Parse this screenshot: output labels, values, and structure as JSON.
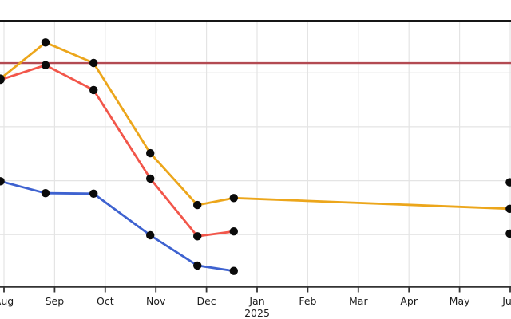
{
  "page": {
    "background": "#ffffff"
  },
  "chart_data": {
    "type": "line",
    "title": "",
    "legend": "none",
    "grid": true,
    "x_axis": {
      "tick_labels": [
        "Aug",
        "Sep",
        "Oct",
        "Nov",
        "Dec",
        "Jan",
        "Feb",
        "Mar",
        "Apr",
        "May",
        "Jun"
      ],
      "year_label": "2025",
      "year_label_tick_index": 5,
      "note": "first and last tick labels clipped at image edges"
    },
    "y_axis": {
      "tick_labels_visible": false,
      "gridlines_at_values": [
        1,
        2,
        3,
        4
      ],
      "value_range": [
        0,
        4.95
      ],
      "unit": "gridline-units (estimated, axis unlabeled)"
    },
    "series": [
      {
        "name": "gold-line",
        "color": "#ECA61B",
        "points": [
          [
            -0.07,
            3.89
          ],
          [
            0.82,
            4.56
          ],
          [
            1.77,
            4.18
          ],
          [
            2.89,
            2.51
          ],
          [
            3.82,
            1.55
          ],
          [
            4.54,
            1.68
          ],
          [
            9.99,
            1.48
          ]
        ]
      },
      {
        "name": "salmon-line",
        "color": "#F2564A",
        "points": [
          [
            -0.07,
            3.87
          ],
          [
            0.82,
            4.14
          ],
          [
            1.77,
            3.68
          ],
          [
            2.89,
            2.04
          ],
          [
            3.82,
            0.97
          ],
          [
            4.54,
            1.06
          ]
        ]
      },
      {
        "name": "blue-line",
        "color": "#3E62D0",
        "points": [
          [
            -0.07,
            1.99
          ],
          [
            0.82,
            1.77
          ],
          [
            1.77,
            1.76
          ],
          [
            2.89,
            0.99
          ],
          [
            3.82,
            0.43
          ],
          [
            4.54,
            0.33
          ]
        ]
      }
    ],
    "reference_line": {
      "color": "#B34A52",
      "value": 4.18
    },
    "isolated_points": [
      [
        9.99,
        1.97
      ],
      [
        9.99,
        1.02
      ]
    ],
    "marker_color": "#0A0A0A",
    "gridline_color": "#E4E4E4",
    "top_spine_color": "#161616",
    "bottom_spine_color": "#333333",
    "tick_label_color": "#1C1C1C"
  }
}
